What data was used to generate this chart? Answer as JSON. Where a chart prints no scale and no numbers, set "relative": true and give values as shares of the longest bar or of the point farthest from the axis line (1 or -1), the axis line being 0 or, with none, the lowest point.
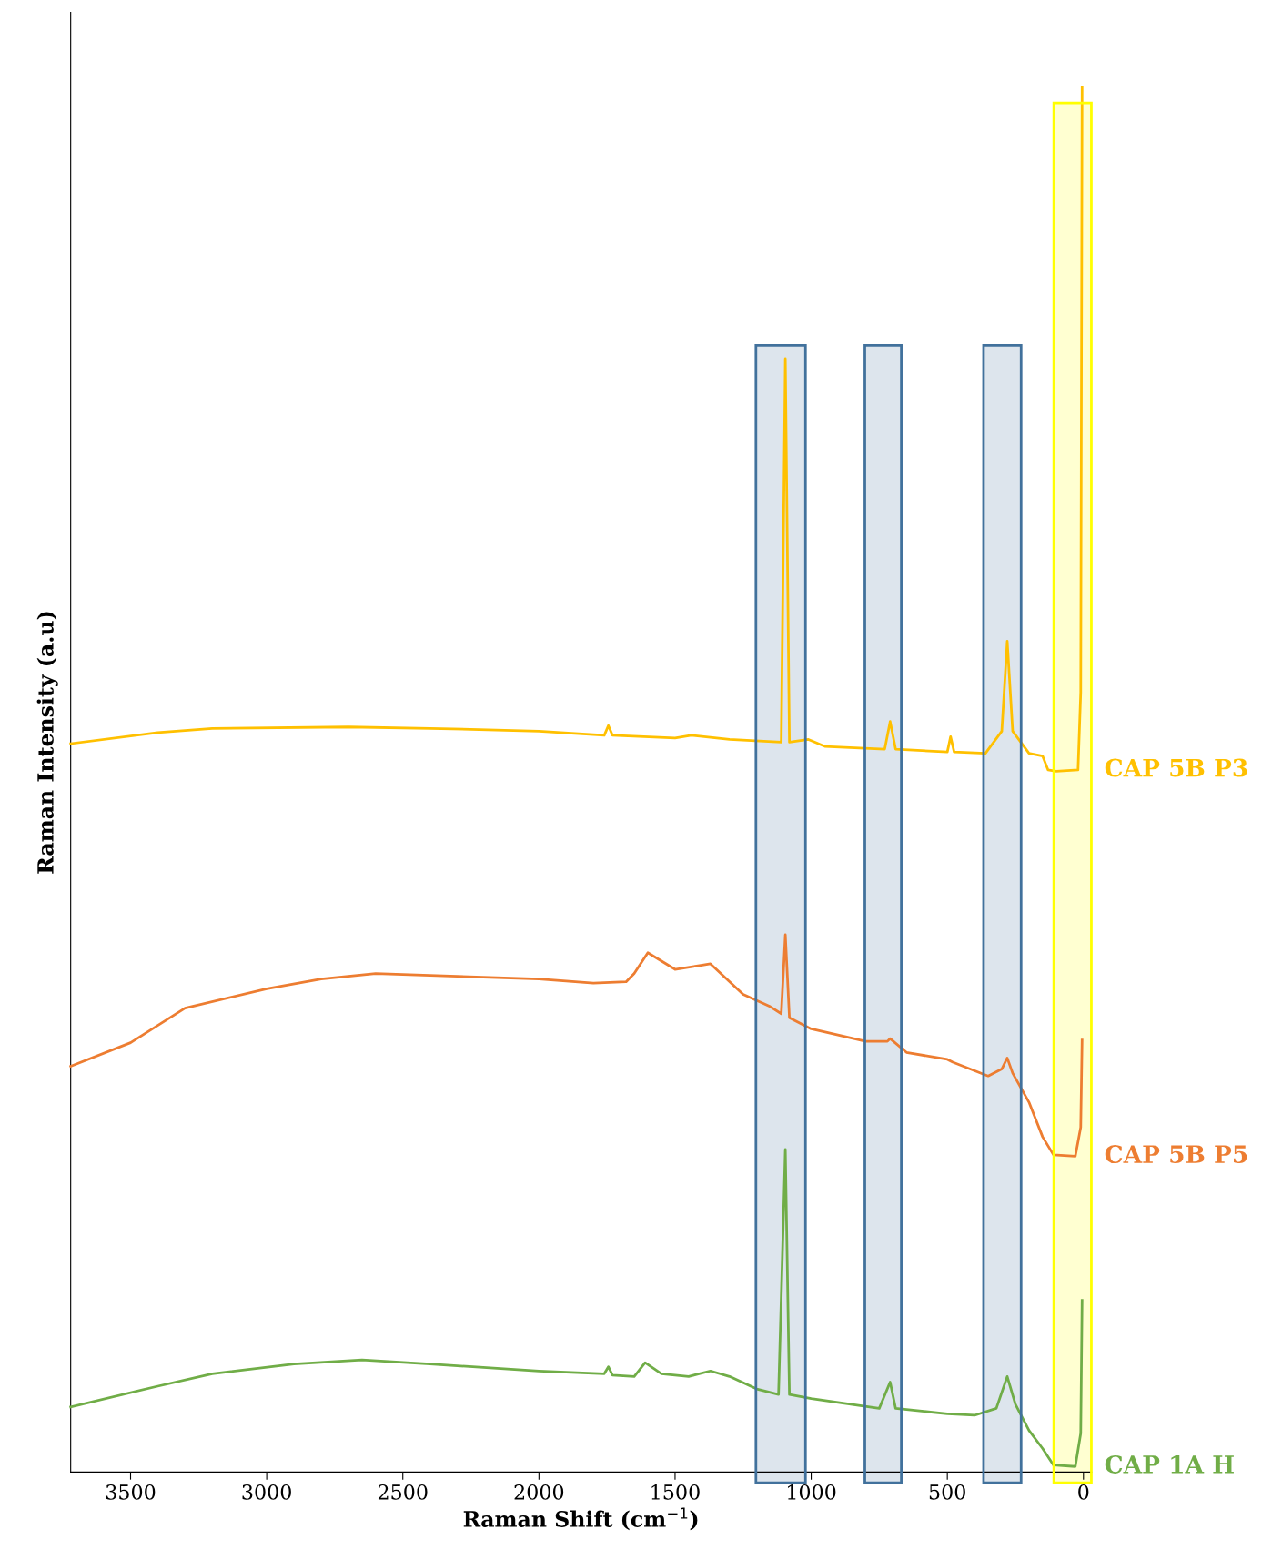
{
  "chart_data": {
    "type": "line",
    "xlabel": "Raman Shift (cm$^{−1}$)",
    "ylabel": "Raman Intensity (a.u)",
    "relative": true,
    "xlim": [
      3720,
      -30
    ],
    "xticks": [
      0,
      500,
      1000,
      1500,
      2000,
      2500,
      3000,
      3500
    ],
    "grid": false,
    "legend": false,
    "marker": "none",
    "line_style": "solid",
    "series": [
      {
        "name": "CAP 5B P3",
        "color": "#ffc000",
        "x": [
          3720,
          3400,
          3200,
          2700,
          2400,
          2000,
          1760,
          1745,
          1730,
          1500,
          1440,
          1300,
          1110,
          1095,
          1080,
          1010,
          950,
          730,
          710,
          690,
          500,
          488,
          475,
          360,
          300,
          280,
          260,
          200,
          150,
          130,
          100,
          20,
          10,
          5
        ],
        "values": [
          0.526,
          0.534,
          0.537,
          0.538,
          0.537,
          0.535,
          0.532,
          0.539,
          0.532,
          0.53,
          0.532,
          0.529,
          0.527,
          0.804,
          0.527,
          0.529,
          0.524,
          0.522,
          0.542,
          0.522,
          0.52,
          0.531,
          0.52,
          0.519,
          0.535,
          0.6,
          0.535,
          0.519,
          0.517,
          0.507,
          0.506,
          0.507,
          0.563,
          1.0
        ]
      },
      {
        "name": "CAP 5B P5",
        "color": "#ed7d31",
        "x": [
          3720,
          3500,
          3300,
          3000,
          2800,
          2600,
          2300,
          2000,
          1800,
          1680,
          1650,
          1600,
          1500,
          1400,
          1370,
          1250,
          1150,
          1110,
          1095,
          1080,
          1000,
          800,
          720,
          710,
          650,
          500,
          480,
          350,
          300,
          280,
          260,
          200,
          150,
          110,
          30,
          10,
          5
        ],
        "values": [
          0.293,
          0.31,
          0.335,
          0.349,
          0.356,
          0.36,
          0.358,
          0.356,
          0.353,
          0.354,
          0.36,
          0.375,
          0.363,
          0.366,
          0.367,
          0.345,
          0.336,
          0.331,
          0.388,
          0.328,
          0.32,
          0.311,
          0.311,
          0.313,
          0.303,
          0.298,
          0.296,
          0.286,
          0.291,
          0.299,
          0.288,
          0.267,
          0.242,
          0.229,
          0.228,
          0.249,
          0.312
        ]
      },
      {
        "name": "CAP 1A H",
        "color": "#70ad47",
        "x": [
          3720,
          3400,
          3200,
          2900,
          2650,
          2400,
          2000,
          1760,
          1745,
          1730,
          1650,
          1610,
          1550,
          1450,
          1370,
          1300,
          1200,
          1120,
          1095,
          1080,
          1000,
          750,
          710,
          690,
          500,
          400,
          320,
          280,
          250,
          200,
          150,
          110,
          30,
          10,
          5
        ],
        "values": [
          0.047,
          0.062,
          0.071,
          0.078,
          0.081,
          0.078,
          0.073,
          0.071,
          0.076,
          0.07,
          0.069,
          0.079,
          0.071,
          0.069,
          0.073,
          0.069,
          0.06,
          0.056,
          0.233,
          0.056,
          0.053,
          0.046,
          0.065,
          0.046,
          0.042,
          0.041,
          0.046,
          0.069,
          0.049,
          0.03,
          0.017,
          0.005,
          0.004,
          0.028,
          0.124
        ]
      }
    ],
    "bands": [
      {
        "axis": "x",
        "from": 1203,
        "to": 1021,
        "color": "#41719c"
      },
      {
        "axis": "x",
        "from": 803,
        "to": 669,
        "color": "#41719c"
      },
      {
        "axis": "x",
        "from": 367,
        "to": 229,
        "color": "#41719c"
      },
      {
        "axis": "x",
        "from": 109,
        "to": -29,
        "color": "#ffff00"
      }
    ]
  }
}
